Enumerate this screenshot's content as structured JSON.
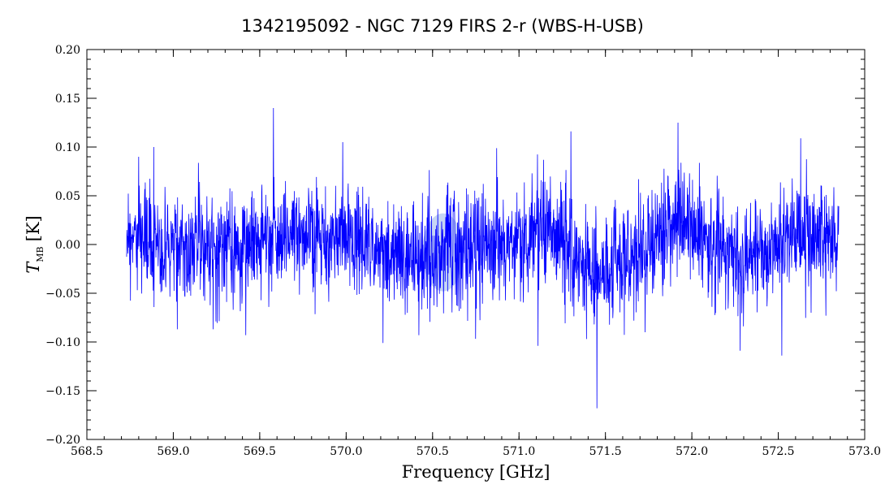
{
  "chart_data": {
    "type": "line",
    "title": "1342195092 - NGC 7129 FIRS 2-r (WBS-H-USB)",
    "xlabel": "Frequency [GHz]",
    "ylabel_main": "T",
    "ylabel_sub": "MB",
    "ylabel_unit": "[K]",
    "xlim": [
      568.5,
      573.0
    ],
    "ylim": [
      -0.2,
      0.2
    ],
    "xticks": [
      568.5,
      569.0,
      569.5,
      570.0,
      570.5,
      571.0,
      571.5,
      572.0,
      572.5,
      573.0
    ],
    "xtick_labels": [
      "568.5",
      "569.0",
      "569.5",
      "570.0",
      "570.5",
      "571.0",
      "571.5",
      "572.0",
      "572.5",
      "573.0"
    ],
    "yticks": [
      -0.2,
      -0.15,
      -0.1,
      -0.05,
      0.0,
      0.05,
      0.1,
      0.15,
      0.2
    ],
    "ytick_labels": [
      "−0.20",
      "−0.15",
      "−0.10",
      "−0.05",
      "0.00",
      "0.05",
      "0.10",
      "0.15",
      "0.20"
    ],
    "grid": false,
    "line_color": "#0000ff",
    "highlight_color": "#b4c8f0",
    "series": [
      {
        "x_start": 568.73,
        "x_end": 572.85,
        "noise_rms": 0.028,
        "baseline": [
          [
            568.73,
            0.005
          ],
          [
            569.0,
            0.0
          ],
          [
            569.3,
            -0.005
          ],
          [
            569.6,
            0.01
          ],
          [
            570.0,
            0.005
          ],
          [
            570.4,
            -0.015
          ],
          [
            570.55,
            0.0
          ],
          [
            570.8,
            -0.005
          ],
          [
            571.2,
            0.015
          ],
          [
            571.45,
            -0.03
          ],
          [
            571.6,
            -0.02
          ],
          [
            571.9,
            0.025
          ],
          [
            572.1,
            0.01
          ],
          [
            572.3,
            -0.02
          ],
          [
            572.6,
            0.01
          ],
          [
            572.85,
            0.005
          ]
        ],
        "y_max": 0.14,
        "y_min": -0.168,
        "spikes": [
          [
            568.8,
            0.09
          ],
          [
            569.58,
            0.14
          ],
          [
            569.98,
            0.105
          ],
          [
            571.3,
            0.116
          ],
          [
            571.92,
            0.125
          ],
          [
            572.63,
            0.109
          ],
          [
            571.45,
            -0.168
          ],
          [
            571.39,
            -0.097
          ],
          [
            569.42,
            -0.093
          ],
          [
            570.42,
            -0.093
          ],
          [
            572.52,
            -0.114
          ],
          [
            569.23,
            -0.087
          ],
          [
            572.28,
            -0.109
          ],
          [
            571.11,
            -0.104
          ],
          [
            571.73,
            -0.09
          ],
          [
            572.69,
            -0.07
          ]
        ]
      }
    ],
    "highlight": {
      "x": 570.56,
      "y": -0.008,
      "x_radius": 0.12,
      "y_radius": 0.04
    }
  }
}
